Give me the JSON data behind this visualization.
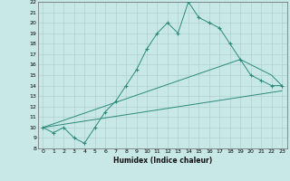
{
  "xlabel": "Humidex (Indice chaleur)",
  "bg_color": "#c8e8e8",
  "line_color": "#2a8a7a",
  "grid_color": "#b0d0d0",
  "xlim": [
    -0.5,
    23.5
  ],
  "ylim": [
    8,
    22
  ],
  "yticks": [
    8,
    9,
    10,
    11,
    12,
    13,
    14,
    15,
    16,
    17,
    18,
    19,
    20,
    21,
    22
  ],
  "xticks": [
    0,
    1,
    2,
    3,
    4,
    5,
    6,
    7,
    8,
    9,
    10,
    11,
    12,
    13,
    14,
    15,
    16,
    17,
    18,
    19,
    20,
    21,
    22,
    23
  ],
  "line1_x": [
    0,
    1,
    2,
    3,
    4,
    5,
    6,
    7,
    8,
    9,
    10,
    11,
    12,
    13,
    14,
    15,
    16,
    17,
    18,
    19,
    20,
    21,
    22,
    23
  ],
  "line1_y": [
    10,
    9.5,
    10,
    9,
    8.5,
    10,
    11.5,
    12.5,
    14,
    15.5,
    17.5,
    19,
    20,
    19,
    22,
    20.5,
    20,
    19.5,
    18,
    16.5,
    15,
    14.5,
    14,
    14
  ],
  "line2_x": [
    0,
    19,
    22,
    23
  ],
  "line2_y": [
    10,
    16.5,
    15,
    14
  ],
  "line3_x": [
    0,
    23
  ],
  "line3_y": [
    10,
    13.5
  ],
  "figsize": [
    3.2,
    2.0
  ],
  "dpi": 100
}
